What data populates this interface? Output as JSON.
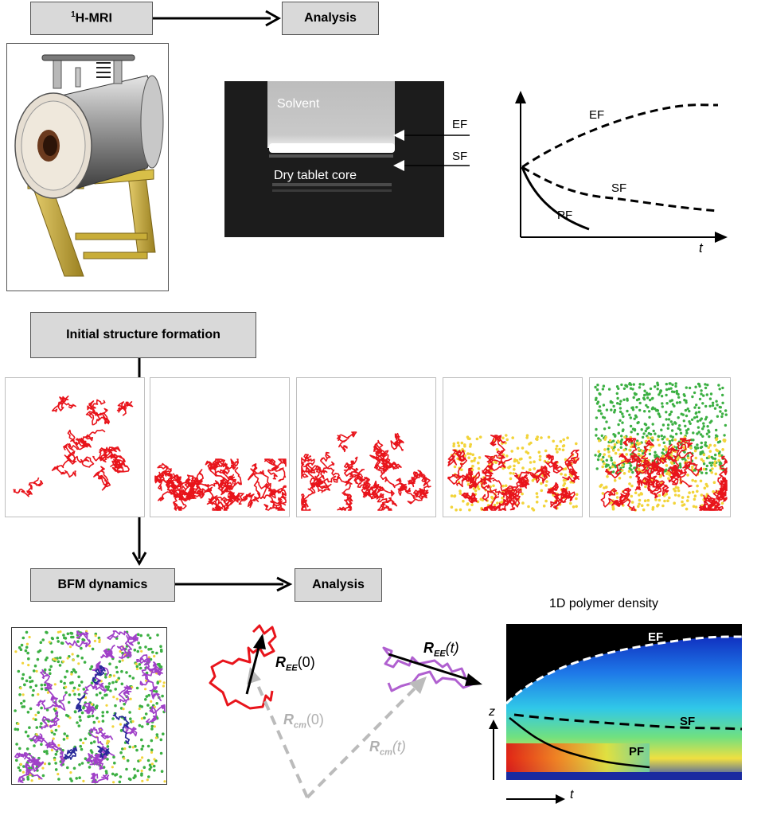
{
  "boxes": {
    "mri_sup": "1",
    "mri_label": "H-MRI",
    "analysis_top": "Analysis",
    "initial_structure": "Initial structure formation",
    "bfm_dynamics": "BFM dynamics",
    "analysis_bottom": "Analysis"
  },
  "mri_image": {
    "solvent": "Solvent",
    "dry_core": "Dry tablet core",
    "ef": "EF",
    "sf": "SF"
  },
  "front_plot": {
    "ef": "EF",
    "sf": "SF",
    "pf": "PF",
    "t_axis": "t"
  },
  "vectors": {
    "ree0_main": "R",
    "ree0_sub": "EE",
    "ree0_arg": "(0)",
    "reet_main": "R",
    "reet_sub": "EE",
    "reet_arg": "(t)",
    "rcm0_main": "R",
    "rcm0_sub": "cm",
    "rcm0_arg": "(0)",
    "rcmt_main": "R",
    "rcmt_sub": "cm",
    "rcmt_arg": "(t)"
  },
  "density_plot": {
    "title": "1D polymer density",
    "ef": "EF",
    "sf": "SF",
    "pf": "PF",
    "z_axis": "z",
    "t_axis": "t"
  },
  "colors": {
    "polymer": "#e8141b",
    "solvent": "#3cb043",
    "water": "#f2d43a",
    "chain_purple": "#a040c8",
    "chain_blue": "#2a2a9a"
  }
}
